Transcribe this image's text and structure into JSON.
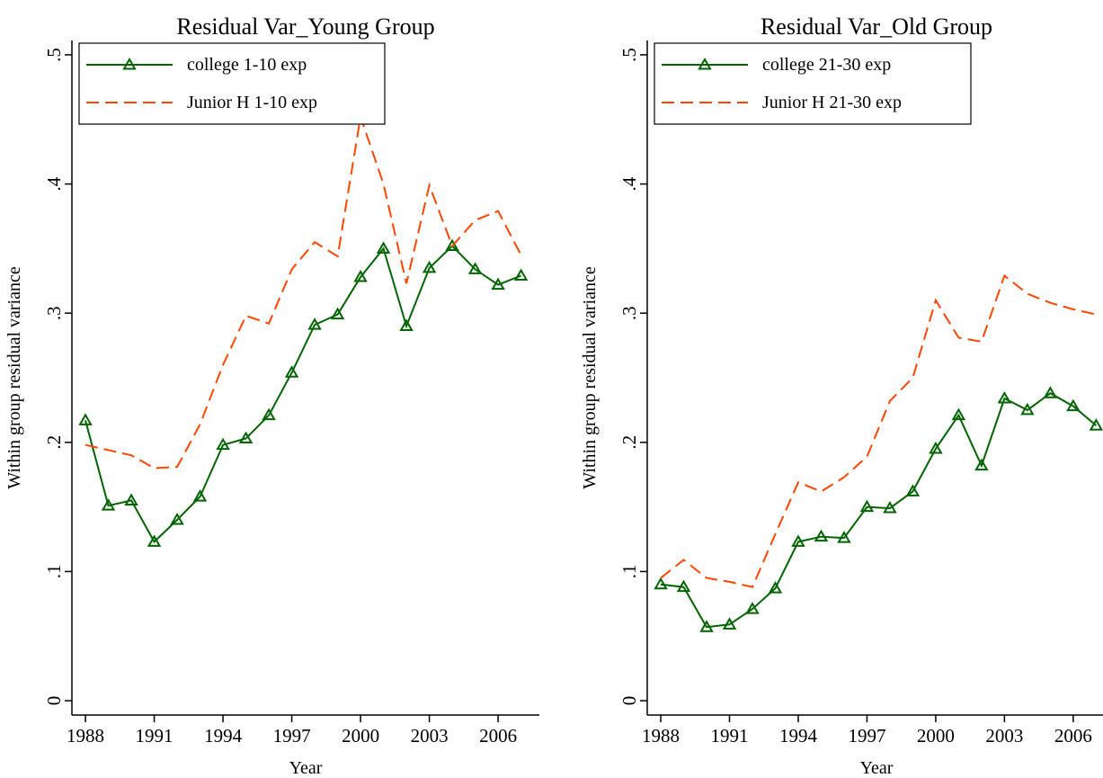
{
  "chart_data": [
    {
      "type": "line",
      "title": "Residual Var_Young Group",
      "xlabel": "Year",
      "ylabel": "Within group residual variance",
      "x": [
        1988,
        1989,
        1990,
        1991,
        1992,
        1993,
        1994,
        1995,
        1996,
        1997,
        1998,
        1999,
        2000,
        2001,
        2002,
        2003,
        2004,
        2005,
        2006,
        2007
      ],
      "series": [
        {
          "name": "college 1-10 exp",
          "color": "#006400",
          "style": "solid",
          "marker": "triangle",
          "values": [
            0.217,
            0.151,
            0.155,
            0.123,
            0.14,
            0.158,
            0.198,
            0.203,
            0.221,
            0.254,
            0.291,
            0.299,
            0.328,
            0.35,
            0.29,
            0.335,
            0.352,
            0.334,
            0.322,
            0.329
          ]
        },
        {
          "name": "Junior H 1-10 exp",
          "color": "#ff4500",
          "style": "dashed",
          "marker": "none",
          "values": [
            0.198,
            0.194,
            0.19,
            0.18,
            0.181,
            0.214,
            0.26,
            0.298,
            0.292,
            0.334,
            0.355,
            0.344,
            0.452,
            0.4,
            0.323,
            0.399,
            0.352,
            0.372,
            0.379,
            0.345
          ]
        }
      ],
      "xlim": [
        1987.41,
        2007.8
      ],
      "ylim": [
        -0.0111,
        0.5111
      ],
      "xticks": [
        1988,
        1991,
        1994,
        1997,
        2000,
        2003,
        2006
      ],
      "yticks": [
        0,
        {
          "value": 0.1,
          "label": ".1"
        },
        {
          "value": 0.2,
          "label": ".2"
        },
        {
          "value": 0.3,
          "label": ".3"
        },
        {
          "value": 0.4,
          "label": ".4"
        },
        {
          "value": 0.5,
          "label": ".5"
        }
      ],
      "legend": "top-left",
      "grid": false
    },
    {
      "type": "line",
      "title": "Residual Var_Old Group",
      "xlabel": "Year",
      "ylabel": "Within group residual variance",
      "x": [
        1988,
        1989,
        1990,
        1991,
        1992,
        1993,
        1994,
        1995,
        1996,
        1997,
        1998,
        1999,
        2000,
        2001,
        2002,
        2003,
        2004,
        2005,
        2006,
        2007
      ],
      "series": [
        {
          "name": "college 21-30 exp",
          "color": "#006400",
          "style": "solid",
          "marker": "triangle",
          "values": [
            0.09,
            0.088,
            0.057,
            0.059,
            0.071,
            0.087,
            0.123,
            0.127,
            0.126,
            0.15,
            0.149,
            0.162,
            0.195,
            0.221,
            0.182,
            0.234,
            0.225,
            0.238,
            0.228,
            0.213
          ]
        },
        {
          "name": "Junior H 21-30 exp",
          "color": "#ff4500",
          "style": "dashed",
          "marker": "none",
          "values": [
            0.095,
            0.109,
            0.095,
            0.092,
            0.088,
            0.129,
            0.169,
            0.162,
            0.173,
            0.189,
            0.232,
            0.25,
            0.31,
            0.281,
            0.278,
            0.329,
            0.315,
            0.308,
            0.303,
            0.299
          ]
        }
      ],
      "xlim": [
        1987.41,
        2007.3
      ],
      "ylim": [
        -0.0111,
        0.5111
      ],
      "xticks": [
        1988,
        1991,
        1994,
        1997,
        2000,
        2003,
        2006
      ],
      "yticks": [
        0,
        {
          "value": 0.1,
          "label": ".1"
        },
        {
          "value": 0.2,
          "label": ".2"
        },
        {
          "value": 0.3,
          "label": ".3"
        },
        {
          "value": 0.4,
          "label": ".4"
        },
        {
          "value": 0.5,
          "label": ".5"
        }
      ],
      "legend": "top-left",
      "grid": false
    }
  ]
}
